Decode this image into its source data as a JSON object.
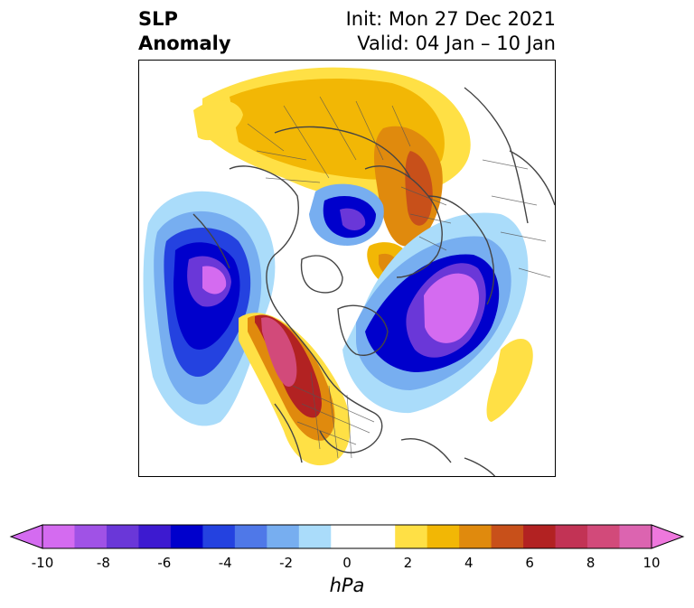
{
  "title": {
    "left_line1": "SLP",
    "left_line2": "Anomaly",
    "right_line1": "Init: Mon 27 Dec 2021",
    "right_line2": "Valid: 04 Jan – 10 Jan"
  },
  "colorbar": {
    "unit": "hPa",
    "ticks": [
      "-10",
      "-8",
      "-6",
      "-4",
      "-2",
      "0",
      "2",
      "4",
      "6",
      "8",
      "10"
    ],
    "colors": [
      "#d46bf0",
      "#a052e6",
      "#6a37d8",
      "#3d1ad0",
      "#0000cc",
      "#2442e0",
      "#4f78e8",
      "#77aef0",
      "#aadcfa",
      "#ffffff",
      "#ffffff",
      "#ffe045",
      "#f2b705",
      "#e08a0d",
      "#c8501a",
      "#b22222",
      "#c23355",
      "#d24a7a",
      "#dc64b0"
    ],
    "extend_min_color": "#d46bf0",
    "extend_max_color": "#ee78dd"
  }
}
